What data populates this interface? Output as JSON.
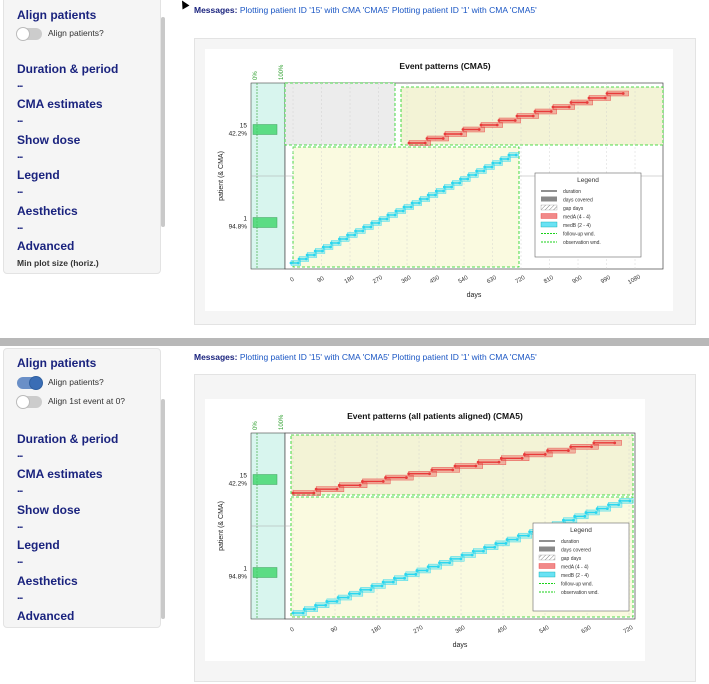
{
  "panels": [
    {
      "sidebar": {
        "align_title": "Align patients",
        "toggles": [
          {
            "label": "Align patients?",
            "on": false
          }
        ],
        "sections": [
          "Duration & period",
          "CMA estimates",
          "Show dose",
          "Legend",
          "Aesthetics",
          "Advanced"
        ],
        "dots": "...",
        "min_plot_label": "Min plot size (horiz.)"
      },
      "message": {
        "label": "Messages:",
        "text": "Plotting patient ID '15' with CMA 'CMA5' Plotting patient ID '1' with CMA 'CMA5'"
      },
      "chart_data": {
        "type": "line",
        "title": "Event patterns (CMA5)",
        "xlabel": "days",
        "ylabel": "patient (& CMA)",
        "x_ticks": [
          "0",
          "90",
          "180",
          "270",
          "360",
          "450",
          "540",
          "630",
          "720",
          "810",
          "900",
          "990",
          "1080"
        ],
        "patients": [
          {
            "id": "15",
            "cma": "42.2%"
          },
          {
            "id": "1",
            "cma": "94.8%"
          }
        ],
        "cma_axis": [
          "0%",
          "100%"
        ],
        "legend": {
          "title": "Legend",
          "items": [
            "duration",
            "days covered",
            "gap days",
            "medA (4 - 4)",
            "medB (2 - 4)",
            "follow-up wnd.",
            "observation wnd."
          ]
        }
      }
    },
    {
      "sidebar": {
        "align_title": "Align patients",
        "toggles": [
          {
            "label": "Align patients?",
            "on": true
          },
          {
            "label": "Align 1st event at 0?",
            "on": false
          }
        ],
        "sections": [
          "Duration & period",
          "CMA estimates",
          "Show dose",
          "Legend",
          "Aesthetics",
          "Advanced"
        ],
        "dots": "..."
      },
      "message": {
        "label": "Messages:",
        "text": "Plotting patient ID '15' with CMA 'CMA5' Plotting patient ID '1' with CMA 'CMA5'"
      },
      "chart_data": {
        "type": "line",
        "title": "Event patterns (all patients aligned) (CMA5)",
        "xlabel": "days",
        "ylabel": "patient (& CMA)",
        "x_ticks": [
          "0",
          "90",
          "180",
          "270",
          "360",
          "450",
          "540",
          "630",
          "720"
        ],
        "patients": [
          {
            "id": "15",
            "cma": "42.2%"
          },
          {
            "id": "1",
            "cma": "94.8%"
          }
        ],
        "cma_axis": [
          "0%",
          "100%"
        ],
        "legend": {
          "title": "Legend",
          "items": [
            "duration",
            "days covered",
            "gap days",
            "medA (4 - 4)",
            "medB (2 - 4)",
            "follow-up wnd.",
            "observation wnd."
          ]
        }
      }
    }
  ],
  "colors": {
    "medA": "#e83a3a",
    "medB": "#29d6ef",
    "green_dash": "#19d219",
    "follow_fill": "#f3f3d6",
    "obs_fill": "#fafae0"
  }
}
